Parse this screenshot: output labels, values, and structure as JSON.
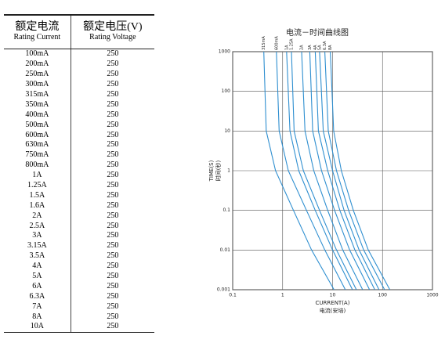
{
  "table": {
    "header": [
      [
        "额定电流",
        "Rating Current"
      ],
      [
        "额定电压(V)",
        "Rating Voltage"
      ]
    ],
    "rows": [
      [
        "100mA",
        "250"
      ],
      [
        "200mA",
        "250"
      ],
      [
        "250mA",
        "250"
      ],
      [
        "300mA",
        "250"
      ],
      [
        "315mA",
        "250"
      ],
      [
        "350mA",
        "250"
      ],
      [
        "400mA",
        "250"
      ],
      [
        "500mA",
        "250"
      ],
      [
        "600mA",
        "250"
      ],
      [
        "630mA",
        "250"
      ],
      [
        "750mA",
        "250"
      ],
      [
        "800mA",
        "250"
      ],
      [
        "1A",
        "250"
      ],
      [
        "1.25A",
        "250"
      ],
      [
        "1.5A",
        "250"
      ],
      [
        "1.6A",
        "250"
      ],
      [
        "2A",
        "250"
      ],
      [
        "2.5A",
        "250"
      ],
      [
        "3A",
        "250"
      ],
      [
        "3.15A",
        "250"
      ],
      [
        "3.5A",
        "250"
      ],
      [
        "4A",
        "250"
      ],
      [
        "5A",
        "250"
      ],
      [
        "6A",
        "250"
      ],
      [
        "6.3A",
        "250"
      ],
      [
        "7A",
        "250"
      ],
      [
        "8A",
        "250"
      ],
      [
        "10A",
        "250"
      ]
    ]
  },
  "chart_data": {
    "type": "line",
    "title": "电流－时间曲线图",
    "xlabel": [
      "CURRENT(A)",
      "电流(安培)"
    ],
    "ylabel": [
      "TIME(S)",
      "时间(秒)"
    ],
    "xscale": "log",
    "yscale": "log",
    "grid": true,
    "xlim": [
      0.1,
      1000
    ],
    "ylim": [
      0.001,
      1000
    ],
    "xticks": [
      0.1,
      1,
      10,
      100,
      1000
    ],
    "yticks": [
      0.001,
      0.01,
      0.1,
      1,
      10,
      100,
      1000
    ],
    "series": [
      {
        "name": "315mA",
        "color": "#2f8fd0",
        "x": [
          0.42,
          0.47,
          0.72,
          1.65,
          3.8,
          10.7
        ],
        "values": [
          1000,
          10,
          1,
          0.1,
          0.01,
          0.001
        ]
      },
      {
        "name": "600mA",
        "color": "#2f8fd0",
        "x": [
          0.75,
          0.85,
          1.3,
          3,
          7,
          18
        ],
        "values": [
          1000,
          10,
          1,
          0.1,
          0.01,
          0.001
        ]
      },
      {
        "name": "1A",
        "color": "#2f8fd0",
        "x": [
          1.2,
          1.4,
          2.1,
          4.5,
          10,
          25
        ],
        "values": [
          1000,
          10,
          1,
          0.1,
          0.01,
          0.001
        ]
      },
      {
        "name": "1.25A",
        "color": "#2f8fd0",
        "x": [
          1.5,
          1.7,
          2.6,
          5.5,
          12,
          30
        ],
        "values": [
          1000,
          10,
          1,
          0.1,
          0.01,
          0.001
        ]
      },
      {
        "name": "2A",
        "color": "#2f8fd0",
        "x": [
          2.4,
          2.8,
          4.2,
          8,
          16,
          40
        ],
        "values": [
          1000,
          10,
          1,
          0.1,
          0.01,
          0.001
        ]
      },
      {
        "name": "3A",
        "color": "#2f8fd0",
        "x": [
          3.5,
          4,
          6,
          11,
          22,
          55
        ],
        "values": [
          1000,
          10,
          1,
          0.1,
          0.01,
          0.001
        ]
      },
      {
        "name": "4A",
        "color": "#2f8fd0",
        "x": [
          4.5,
          5.2,
          8,
          14,
          28,
          70
        ],
        "values": [
          1000,
          10,
          1,
          0.1,
          0.01,
          0.001
        ]
      },
      {
        "name": "5A",
        "color": "#2f8fd0",
        "x": [
          5.5,
          6.5,
          10,
          17,
          34,
          85
        ],
        "values": [
          1000,
          10,
          1,
          0.1,
          0.01,
          0.001
        ]
      },
      {
        "name": "6.3A",
        "color": "#2f8fd0",
        "x": [
          7,
          8.2,
          12,
          21,
          42,
          110
        ],
        "values": [
          1000,
          10,
          1,
          0.1,
          0.01,
          0.001
        ]
      },
      {
        "name": "8A",
        "color": "#2f8fd0",
        "x": [
          9,
          10.5,
          15,
          26,
          52,
          140
        ],
        "values": [
          1000,
          10,
          1,
          0.1,
          0.01,
          0.001
        ]
      }
    ]
  }
}
